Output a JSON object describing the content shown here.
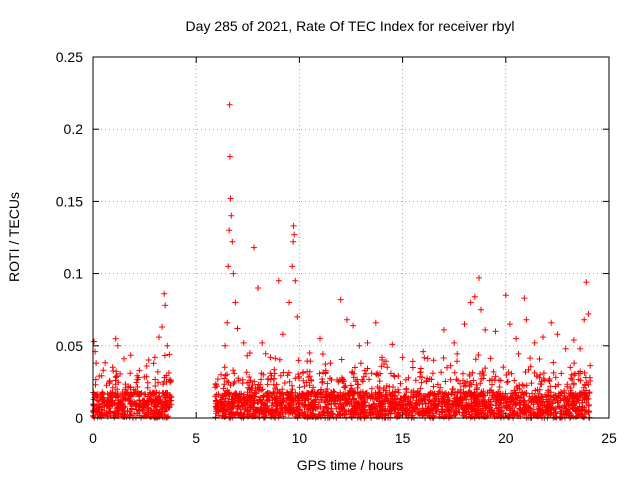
{
  "chart_data": {
    "type": "scatter",
    "title": "Day 285 of 2021, Rate Of TEC Index for receiver rbyl",
    "xlabel": "GPS time / hours",
    "ylabel": "ROTI / TECUs",
    "xlim": [
      0,
      25
    ],
    "ylim": [
      0,
      0.25
    ],
    "x_ticks": [
      0,
      5,
      10,
      15,
      20,
      25
    ],
    "x_tick_labels": [
      "0",
      "5",
      "10",
      "15",
      "20",
      "25"
    ],
    "y_ticks": [
      0,
      0.05,
      0.1,
      0.15,
      0.2,
      0.25
    ],
    "y_tick_labels": [
      "0",
      "0.05",
      "0.1",
      "0.15",
      "0.2",
      "0.25"
    ],
    "grid": true,
    "marker": "+",
    "series": [
      {
        "name": "ROTI",
        "color": "#ff0000",
        "points": [
          [
            0.05,
            0.053
          ],
          [
            0.1,
            0.046
          ],
          [
            0.15,
            0.038
          ],
          [
            0.3,
            0.029
          ],
          [
            0.5,
            0.033
          ],
          [
            0.8,
            0.024
          ],
          [
            1.1,
            0.055
          ],
          [
            1.2,
            0.05
          ],
          [
            1.5,
            0.041
          ],
          [
            1.8,
            0.031
          ],
          [
            2.2,
            0.028
          ],
          [
            2.6,
            0.036
          ],
          [
            3.0,
            0.042
          ],
          [
            3.2,
            0.056
          ],
          [
            3.35,
            0.063
          ],
          [
            3.45,
            0.086
          ],
          [
            3.5,
            0.078
          ],
          [
            3.6,
            0.05
          ],
          [
            3.7,
            0.044
          ],
          [
            6.0,
            0.022
          ],
          [
            6.2,
            0.03
          ],
          [
            6.4,
            0.05
          ],
          [
            6.5,
            0.066
          ],
          [
            6.55,
            0.105
          ],
          [
            6.6,
            0.13
          ],
          [
            6.62,
            0.217
          ],
          [
            6.64,
            0.181
          ],
          [
            6.66,
            0.152
          ],
          [
            6.7,
            0.14
          ],
          [
            6.75,
            0.122
          ],
          [
            6.8,
            0.1
          ],
          [
            6.9,
            0.08
          ],
          [
            7.0,
            0.062
          ],
          [
            7.3,
            0.052
          ],
          [
            7.6,
            0.045
          ],
          [
            7.8,
            0.118
          ],
          [
            8.0,
            0.09
          ],
          [
            8.2,
            0.052
          ],
          [
            8.6,
            0.042
          ],
          [
            9.0,
            0.095
          ],
          [
            9.2,
            0.058
          ],
          [
            9.5,
            0.08
          ],
          [
            9.65,
            0.105
          ],
          [
            9.7,
            0.122
          ],
          [
            9.72,
            0.133
          ],
          [
            9.75,
            0.127
          ],
          [
            9.8,
            0.095
          ],
          [
            9.9,
            0.07
          ],
          [
            10.5,
            0.045
          ],
          [
            11.0,
            0.055
          ],
          [
            11.5,
            0.038
          ],
          [
            12.0,
            0.082
          ],
          [
            12.3,
            0.068
          ],
          [
            12.6,
            0.064
          ],
          [
            12.9,
            0.05
          ],
          [
            13.3,
            0.052
          ],
          [
            13.7,
            0.066
          ],
          [
            14.0,
            0.042
          ],
          [
            14.5,
            0.051
          ],
          [
            15.0,
            0.042
          ],
          [
            15.5,
            0.035
          ],
          [
            16.0,
            0.046
          ],
          [
            16.5,
            0.04
          ],
          [
            17.0,
            0.061
          ],
          [
            17.5,
            0.052
          ],
          [
            18.0,
            0.065
          ],
          [
            18.3,
            0.08
          ],
          [
            18.5,
            0.084
          ],
          [
            18.7,
            0.097
          ],
          [
            18.8,
            0.075
          ],
          [
            19.0,
            0.061
          ],
          [
            19.5,
            0.06
          ],
          [
            20.0,
            0.085
          ],
          [
            20.2,
            0.065
          ],
          [
            20.5,
            0.055
          ],
          [
            20.9,
            0.083
          ],
          [
            21.0,
            0.068
          ],
          [
            21.4,
            0.052
          ],
          [
            21.8,
            0.056
          ],
          [
            22.2,
            0.066
          ],
          [
            22.5,
            0.058
          ],
          [
            22.9,
            0.048
          ],
          [
            23.3,
            0.054
          ],
          [
            23.6,
            0.048
          ],
          [
            23.8,
            0.068
          ],
          [
            23.9,
            0.094
          ],
          [
            24.0,
            0.072
          ]
        ]
      }
    ]
  }
}
